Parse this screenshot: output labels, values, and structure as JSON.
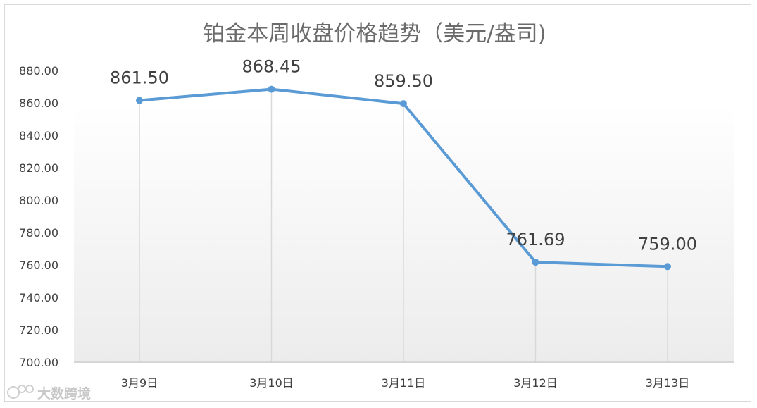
{
  "chart_data": {
    "type": "line",
    "title": "铂金本周收盘价格趋势（美元/盎司)",
    "categories": [
      "3月9日",
      "3月10日",
      "3月11日",
      "3月12日",
      "3月13日"
    ],
    "series": [
      {
        "values": [
          861.5,
          868.45,
          859.5,
          761.69,
          759.0
        ]
      }
    ],
    "data_labels": [
      "861.50",
      "868.45",
      "859.50",
      "761.69",
      "759.00"
    ],
    "y_ticks": [
      "700.00",
      "720.00",
      "740.00",
      "760.00",
      "780.00",
      "800.00",
      "820.00",
      "840.00",
      "860.00",
      "880.00"
    ],
    "ylim": [
      700,
      880
    ],
    "xlabel": "",
    "ylabel": "",
    "grid": false,
    "drop_lines": true,
    "legend": "none",
    "colors": {
      "line": "#5b9bd5",
      "drop_line": "#d9d9d9",
      "axis": "#bfbfbf"
    }
  },
  "watermark": {
    "text": "大数跨境",
    "logo_text": "100"
  }
}
